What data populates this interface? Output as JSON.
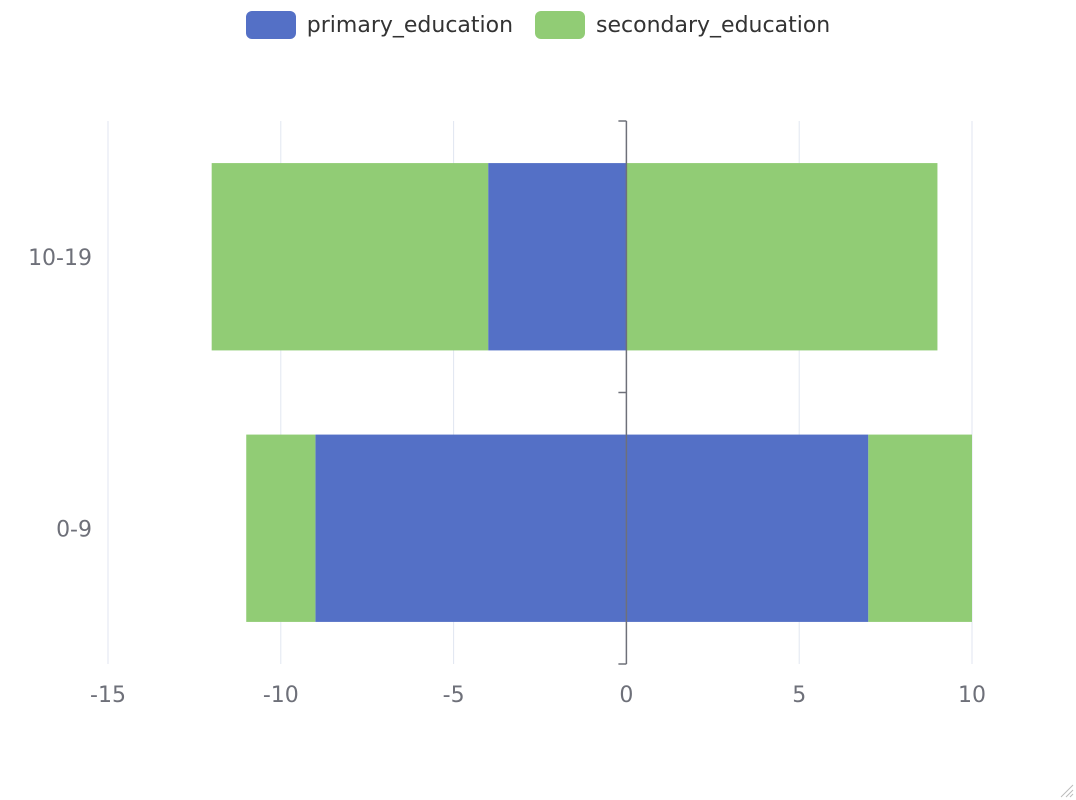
{
  "chart_data": {
    "type": "bar",
    "orientation": "horizontal",
    "stacked": true,
    "categories": [
      "10-19",
      "0-9"
    ],
    "series": [
      {
        "name": "primary_education",
        "color": "#5470c6",
        "values": [
          -4,
          -9
        ]
      },
      {
        "name": "primary_education",
        "color": "#5470c6",
        "values": [
          0,
          7
        ]
      },
      {
        "name": "secondary_education",
        "color": "#91cc75",
        "values": [
          -8,
          -2
        ]
      },
      {
        "name": "secondary_education",
        "color": "#91cc75",
        "values": [
          9,
          3
        ]
      }
    ],
    "legend": [
      {
        "name": "primary_education",
        "color": "#5470c6"
      },
      {
        "name": "secondary_education",
        "color": "#91cc75"
      }
    ],
    "legend_position": "top-center",
    "xlim": [
      -15,
      10
    ],
    "xticks": [
      "-15",
      "-10",
      "-5",
      "0",
      "5",
      "10"
    ],
    "grid": true
  }
}
